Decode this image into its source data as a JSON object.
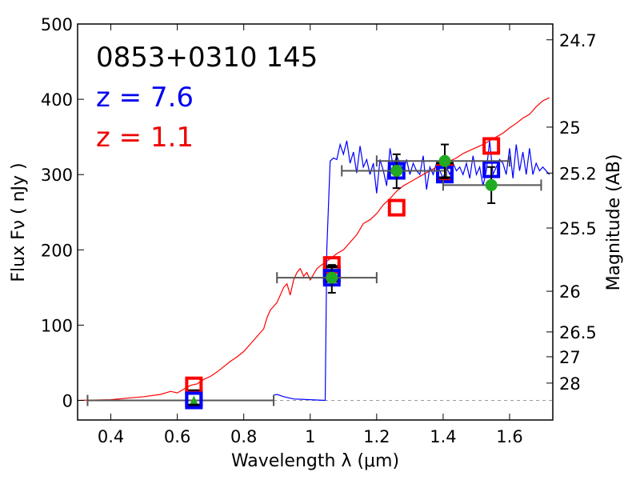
{
  "chart_data": {
    "type": "line",
    "title": "0853+0310 145",
    "xlabel": "Wavelength  λ (μm)",
    "ylabel": "Flux  Fν  ( nJy )",
    "y2label": "Magnitude (AB)",
    "xlim": [
      0.3,
      1.73
    ],
    "ylim": [
      -26,
      500
    ],
    "x_ticks": [
      0.4,
      0.6,
      0.8,
      1,
      1.2,
      1.4,
      1.6
    ],
    "x_tick_labels": [
      "0.4",
      "0.6",
      "0.8",
      "1",
      "1.2",
      "1.4",
      "1.6"
    ],
    "y_ticks": [
      0,
      100,
      200,
      300,
      400,
      500
    ],
    "y_tick_labels": [
      "0",
      "100",
      "200",
      "300",
      "400",
      "500"
    ],
    "mag_ticks": [
      {
        "label": "24.7",
        "flux": 479
      },
      {
        "label": "25",
        "flux": 363
      },
      {
        "label": "25.2",
        "flux": 302
      },
      {
        "label": "25.5",
        "flux": 229
      },
      {
        "label": "26",
        "flux": 145
      },
      {
        "label": "26.5",
        "flux": 91
      },
      {
        "label": "27",
        "flux": 58
      },
      {
        "label": "28",
        "flux": 23
      }
    ],
    "legend": [
      {
        "label": "z = 7.6",
        "color": "#0000ee"
      },
      {
        "label": "z = 1.1",
        "color": "#ee0000"
      }
    ],
    "series": [
      {
        "name": "z = 7.6",
        "color": "#0000ff",
        "x": [
          0.89,
          0.9,
          0.92,
          0.95,
          1.0,
          1.045,
          1.05,
          1.06,
          1.07,
          1.08,
          1.09,
          1.1,
          1.11,
          1.12,
          1.13,
          1.14,
          1.15,
          1.16,
          1.17,
          1.18,
          1.19,
          1.2,
          1.21,
          1.22,
          1.23,
          1.24,
          1.25,
          1.26,
          1.27,
          1.28,
          1.29,
          1.3,
          1.31,
          1.32,
          1.33,
          1.34,
          1.35,
          1.36,
          1.37,
          1.38,
          1.39,
          1.4,
          1.41,
          1.42,
          1.43,
          1.44,
          1.45,
          1.46,
          1.47,
          1.48,
          1.49,
          1.5,
          1.51,
          1.52,
          1.53,
          1.54,
          1.55,
          1.56,
          1.57,
          1.58,
          1.59,
          1.6,
          1.61,
          1.62,
          1.63,
          1.64,
          1.65,
          1.66,
          1.67,
          1.68,
          1.69,
          1.7,
          1.72
        ],
        "y": [
          7,
          8,
          5,
          2,
          1,
          0,
          200,
          318,
          322,
          320,
          340,
          327,
          345,
          315,
          330,
          302,
          338,
          310,
          320,
          300,
          315,
          275,
          320,
          305,
          285,
          335,
          310,
          325,
          315,
          305,
          320,
          300,
          315,
          305,
          300,
          325,
          280,
          310,
          300,
          315,
          305,
          295,
          310,
          300,
          315,
          305,
          310,
          300,
          315,
          295,
          325,
          300,
          310,
          285,
          305,
          345,
          300,
          310,
          320,
          315,
          300,
          335,
          295,
          340,
          305,
          330,
          300,
          335,
          300,
          315,
          305,
          310,
          300
        ]
      },
      {
        "name": "z = 1.1",
        "color": "#ff0000",
        "x": [
          0.3,
          0.4,
          0.45,
          0.5,
          0.55,
          0.58,
          0.6,
          0.62,
          0.64,
          0.66,
          0.68,
          0.7,
          0.72,
          0.74,
          0.76,
          0.78,
          0.8,
          0.82,
          0.84,
          0.86,
          0.87,
          0.88,
          0.89,
          0.9,
          0.91,
          0.92,
          0.93,
          0.94,
          0.95,
          0.96,
          0.97,
          0.98,
          0.99,
          1.0,
          1.02,
          1.04,
          1.06,
          1.08,
          1.1,
          1.12,
          1.14,
          1.16,
          1.18,
          1.2,
          1.22,
          1.24,
          1.26,
          1.28,
          1.3,
          1.32,
          1.34,
          1.36,
          1.38,
          1.4,
          1.42,
          1.44,
          1.46,
          1.48,
          1.5,
          1.52,
          1.54,
          1.56,
          1.58,
          1.6,
          1.62,
          1.64,
          1.66,
          1.68,
          1.7,
          1.72
        ],
        "y": [
          0,
          1,
          3,
          5,
          8,
          12,
          10,
          15,
          20,
          22,
          28,
          32,
          38,
          45,
          52,
          58,
          65,
          75,
          85,
          95,
          110,
          120,
          125,
          130,
          140,
          150,
          155,
          140,
          160,
          170,
          175,
          165,
          170,
          160,
          175,
          182,
          188,
          195,
          200,
          210,
          220,
          235,
          240,
          248,
          260,
          268,
          278,
          285,
          290,
          295,
          300,
          305,
          310,
          312,
          318,
          322,
          328,
          332,
          336,
          340,
          345,
          350,
          355,
          362,
          368,
          375,
          380,
          390,
          398,
          402
        ]
      }
    ],
    "markers": {
      "blue_squares": [
        {
          "x": 0.65,
          "y": 0
        },
        {
          "x": 1.065,
          "y": 163
        },
        {
          "x": 1.26,
          "y": 305
        },
        {
          "x": 1.405,
          "y": 300
        },
        {
          "x": 1.545,
          "y": 307
        }
      ],
      "red_squares": [
        {
          "x": 0.65,
          "y": 20
        },
        {
          "x": 1.065,
          "y": 180
        },
        {
          "x": 1.26,
          "y": 256
        },
        {
          "x": 1.405,
          "y": 302
        },
        {
          "x": 1.545,
          "y": 338
        }
      ],
      "black_squares": [
        {
          "x": 0.65,
          "y": 3
        },
        {
          "x": 1.065,
          "y": 168
        },
        {
          "x": 1.405,
          "y": 305
        }
      ],
      "green_points": [
        {
          "x": 1.065,
          "y": 163,
          "xerr": [
            0.9,
            1.2
          ],
          "yerr": [
            143,
            180
          ]
        },
        {
          "x": 1.26,
          "y": 305,
          "xerr": [
            1.095,
            1.41
          ],
          "yerr": [
            282,
            327
          ]
        },
        {
          "x": 1.405,
          "y": 318,
          "xerr": [
            1.2,
            1.6
          ],
          "yerr": [
            295,
            340
          ]
        },
        {
          "x": 1.545,
          "y": 286,
          "xerr": [
            1.4,
            1.695
          ],
          "yerr": [
            262,
            310
          ]
        }
      ],
      "green_triangle": {
        "x": 0.65,
        "y": -2,
        "xerr": [
          0.33,
          0.89
        ]
      }
    }
  }
}
